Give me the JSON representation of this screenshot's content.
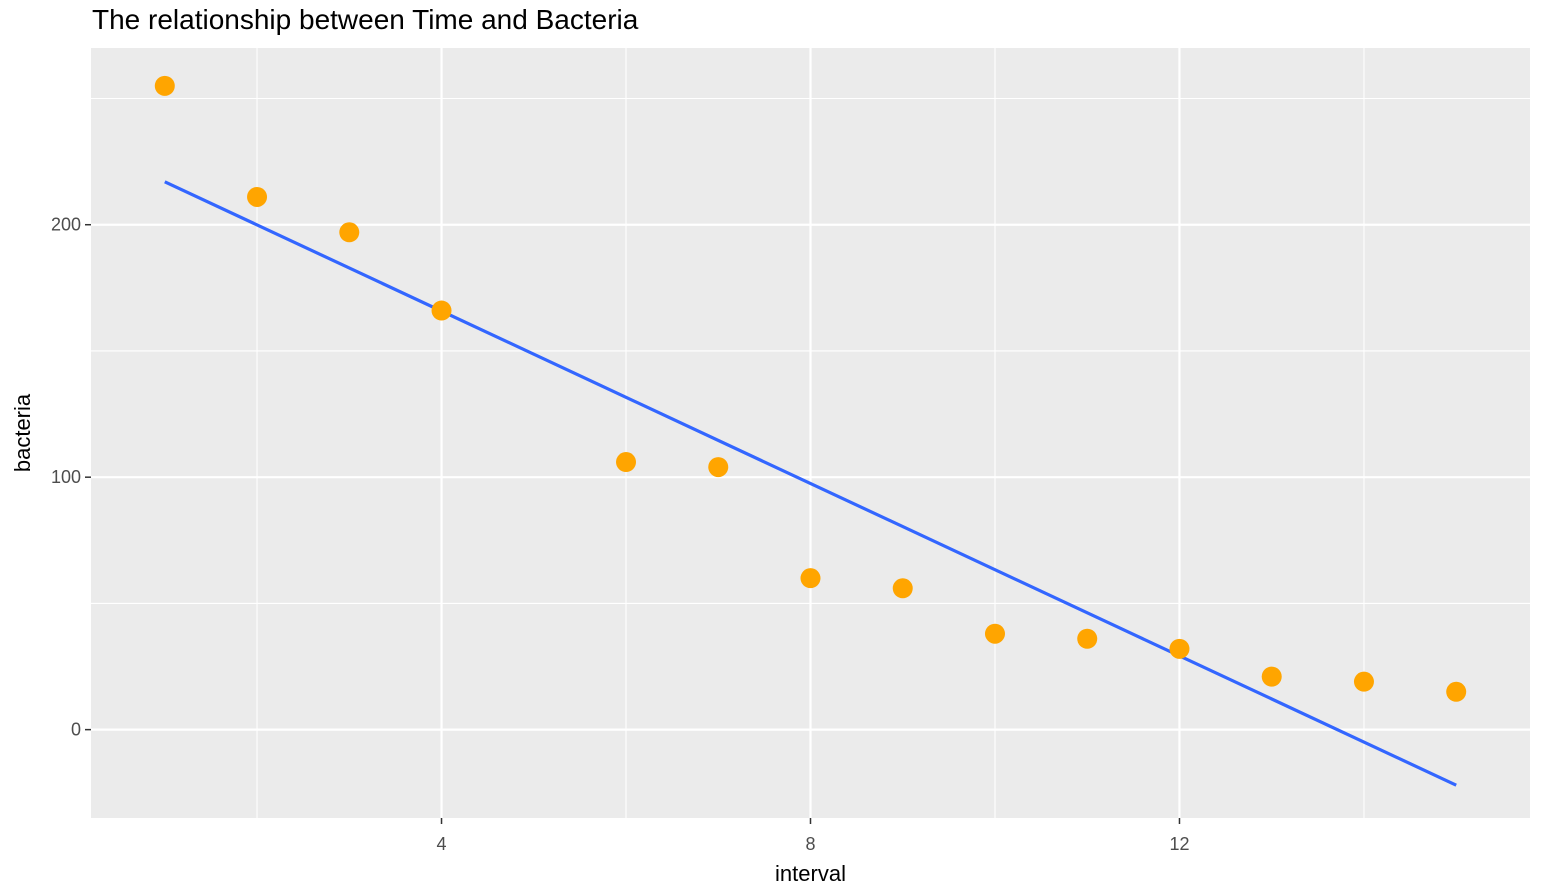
{
  "chart_data": {
    "type": "scatter",
    "title": "The relationship between Time and Bacteria",
    "xlabel": "interval",
    "ylabel": "bacteria",
    "xlim": [
      0.2,
      15.8
    ],
    "ylim": [
      -35,
      270
    ],
    "x_ticks": [
      4,
      8,
      12
    ],
    "x_tick_labels": [
      "4",
      "8",
      "12"
    ],
    "y_ticks": [
      0,
      100,
      200
    ],
    "y_tick_labels": [
      "0",
      "100",
      "200"
    ],
    "grid": true,
    "legend": "none",
    "series": [
      {
        "kind": "points",
        "x": [
          1,
          2,
          3,
          4,
          6,
          7,
          8,
          9,
          10,
          11,
          12,
          13,
          14,
          15
        ],
        "y": [
          255,
          211,
          197,
          166,
          106,
          104,
          60,
          56,
          38,
          36,
          32,
          21,
          19,
          15
        ]
      },
      {
        "kind": "fit-line",
        "x": [
          1,
          15
        ],
        "y": [
          217,
          -22
        ]
      }
    ],
    "colors": {
      "panel": "#ebebeb",
      "grid": "#ffffff",
      "points": "#ffa500",
      "line": "#3366ff"
    }
  }
}
